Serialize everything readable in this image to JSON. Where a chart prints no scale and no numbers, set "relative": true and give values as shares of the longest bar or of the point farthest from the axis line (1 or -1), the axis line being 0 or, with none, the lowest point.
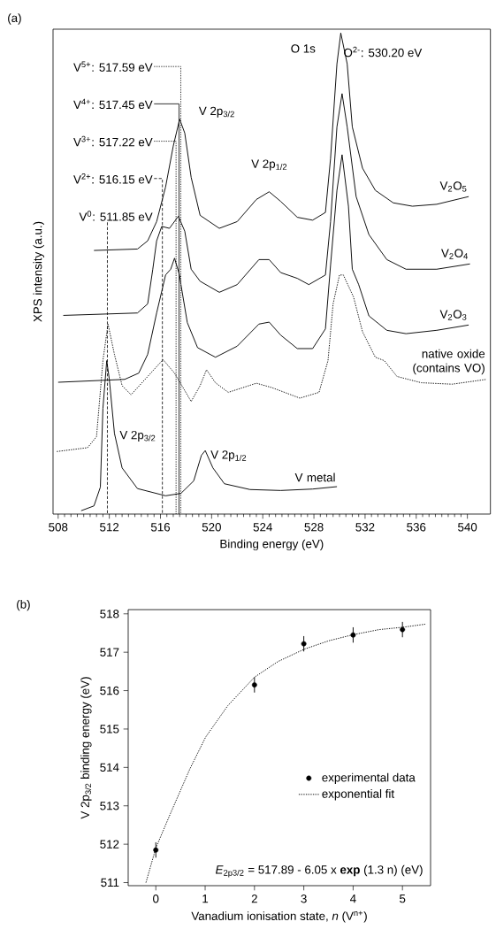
{
  "chart_data": [
    {
      "type": "line",
      "title": "(a)",
      "xlabel": "Binding energy (eV)",
      "ylabel": "XPS intensity (a.u.)",
      "relative": true,
      "tick_labels": "x",
      "xlim": [
        507.6,
        541.8
      ],
      "xticks": [
        508,
        512,
        516,
        520,
        524,
        528,
        532,
        536,
        540
      ],
      "series": [
        {
          "name": "V$_{2}$O$_{5}$",
          "color": "#000000",
          "x": [
            510.8,
            514.2,
            515.0,
            515.7,
            516.4,
            517.0,
            517.5,
            517.9,
            518.4,
            519.1,
            520.6,
            522.0,
            523.5,
            524.5,
            525.4,
            526.7,
            527.9,
            528.9,
            529.3,
            529.8,
            530.1,
            530.6,
            531.0,
            531.8,
            532.8,
            534.2,
            535.7,
            537.6,
            540.1
          ],
          "values": [
            0.548,
            0.551,
            0.568,
            0.608,
            0.68,
            0.765,
            0.821,
            0.792,
            0.7,
            0.621,
            0.594,
            0.608,
            0.654,
            0.67,
            0.65,
            0.617,
            0.611,
            0.627,
            0.739,
            0.936,
            1.0,
            0.936,
            0.805,
            0.719,
            0.673,
            0.647,
            0.64,
            0.644,
            0.66
          ]
        },
        {
          "name": "V$_{2}$O$_{4}$",
          "color": "#000000",
          "x": [
            508.4,
            514.2,
            515.0,
            515.4,
            515.7,
            516.1,
            516.7,
            517.4,
            517.9,
            518.4,
            519.1,
            520.6,
            522.0,
            523.7,
            524.5,
            525.4,
            526.7,
            527.6,
            528.9,
            529.3,
            529.8,
            530.2,
            530.6,
            531.3,
            532.3,
            533.7,
            535.2,
            537.6,
            540.2
          ],
          "values": [
            0.413,
            0.418,
            0.437,
            0.509,
            0.568,
            0.598,
            0.594,
            0.619,
            0.588,
            0.509,
            0.484,
            0.461,
            0.477,
            0.529,
            0.529,
            0.502,
            0.49,
            0.477,
            0.497,
            0.608,
            0.805,
            0.874,
            0.805,
            0.66,
            0.581,
            0.529,
            0.509,
            0.509,
            0.52
          ]
        },
        {
          "name": "V$_{2}$O$_{3}$",
          "color": "#000000",
          "x": [
            508.0,
            513.2,
            514.3,
            515.0,
            515.7,
            516.4,
            516.8,
            517.1,
            517.5,
            517.6,
            518.1,
            518.9,
            520.3,
            522.0,
            523.7,
            524.5,
            525.4,
            526.7,
            527.9,
            528.9,
            529.3,
            529.8,
            530.2,
            530.7,
            531.0,
            531.5,
            532.3,
            533.7,
            535.2,
            537.6,
            540.1
          ],
          "values": [
            0.274,
            0.28,
            0.293,
            0.332,
            0.418,
            0.497,
            0.509,
            0.532,
            0.496,
            0.477,
            0.398,
            0.346,
            0.326,
            0.349,
            0.395,
            0.399,
            0.372,
            0.344,
            0.344,
            0.385,
            0.517,
            0.673,
            0.747,
            0.64,
            0.509,
            0.477,
            0.412,
            0.382,
            0.375,
            0.382,
            0.393
          ]
        },
        {
          "name": "native oxide (contains VO)",
          "color": "#000000",
          "line_style": "dotted",
          "x": [
            507.9,
            510.3,
            511.0,
            511.5,
            511.9,
            512.4,
            513.0,
            513.7,
            515.0,
            516.2,
            517.1,
            518.4,
            519.1,
            519.6,
            520.3,
            521.3,
            523.5,
            524.7,
            526.9,
            528.4,
            529.1,
            529.5,
            530.0,
            530.3,
            531.1,
            531.8,
            532.8,
            533.5,
            534.5,
            536.4,
            538.8,
            541.5
          ],
          "values": [
            0.13,
            0.138,
            0.161,
            0.319,
            0.395,
            0.332,
            0.267,
            0.248,
            0.286,
            0.321,
            0.293,
            0.234,
            0.267,
            0.3,
            0.273,
            0.253,
            0.272,
            0.263,
            0.241,
            0.253,
            0.319,
            0.437,
            0.497,
            0.497,
            0.451,
            0.379,
            0.326,
            0.319,
            0.286,
            0.273,
            0.27,
            0.28
          ]
        },
        {
          "name": "V metal",
          "color": "#000000",
          "x": [
            509.8,
            510.8,
            511.3,
            511.5,
            511.8,
            512.0,
            512.4,
            513.0,
            514.2,
            516.4,
            517.6,
            518.6,
            519.2,
            519.5,
            520.1,
            521.0,
            523.0,
            525.4,
            527.9,
            529.8
          ],
          "values": [
            0.007,
            0.017,
            0.056,
            0.22,
            0.319,
            0.28,
            0.168,
            0.096,
            0.053,
            0.038,
            0.043,
            0.069,
            0.122,
            0.132,
            0.096,
            0.063,
            0.051,
            0.049,
            0.052,
            0.057
          ]
        }
      ],
      "ref_lines": [
        {
          "axis": "x",
          "value": 511.85,
          "label": "V$^{0}$: 511.85 eV",
          "line_style": "dashed"
        },
        {
          "axis": "x",
          "value": 516.15,
          "label": "V$^{2+}$: 516.15 eV",
          "line_style": "dashed"
        },
        {
          "axis": "x",
          "value": 517.22,
          "label": "V$^{3+}$: 517.22 eV",
          "line_style": "dotted"
        },
        {
          "axis": "x",
          "value": 517.45,
          "label": "V$^{4+}$: 517.45 eV",
          "line_style": "solid"
        },
        {
          "axis": "x",
          "value": 517.59,
          "label": "V$^{5+}$: 517.59 eV",
          "line_style": "dotted"
        }
      ],
      "annotations": [
        "O 1s",
        {
          "text": "O$^{2-}$: 530.20 eV",
          "x": 530.2,
          "y": 0.961
        },
        "V 2p$_{3/2}$",
        "V 2p$_{1/2}$",
        {
          "text": "V 2p$_{3/2}$",
          "x": 512.7,
          "y": 0.162
        },
        "V 2p$_{1/2}$"
      ]
    },
    {
      "type": "scatter",
      "title": "(b)",
      "xlabel": "Vanadium ionisation state, *n* (V$^{n+}$)",
      "ylabel": "V 2p$_{3/2}$ binding energy (eV)",
      "xlim": [
        -0.56,
        5.57
      ],
      "ylim": [
        510.92,
        518.11
      ],
      "xticks": [
        0,
        1,
        2,
        3,
        4,
        5
      ],
      "yticks": [
        511,
        512,
        513,
        514,
        515,
        516,
        517,
        518
      ],
      "legend": "right",
      "series": [
        {
          "name": "experimental data",
          "color": "#000000",
          "marker": "circle",
          "x": [
            0,
            2,
            3,
            4,
            5
          ],
          "values": [
            511.85,
            516.15,
            517.22,
            517.45,
            517.59
          ],
          "errors": [
            0.2,
            0.2,
            0.2,
            0.2,
            0.2
          ]
        },
        {
          "name": "exponential fit",
          "type": "line",
          "marker": "none",
          "line_style": "dotted",
          "color": "#000000",
          "x": [
            -0.2,
            0,
            0.3,
            0.69,
            1.01,
            1.46,
            2.0,
            2.48,
            3.01,
            3.51,
            4.01,
            4.53,
            5.0,
            5.46
          ],
          "values": [
            511.0,
            511.9,
            512.81,
            513.96,
            514.79,
            515.61,
            516.35,
            516.76,
            517.08,
            517.3,
            517.46,
            517.59,
            517.65,
            517.73
          ]
        }
      ],
      "annotations": [
        "*E*$_{2p3/2}$ = 517.89 - 6.05 x **exp** (1.3 n) (eV)"
      ]
    }
  ]
}
